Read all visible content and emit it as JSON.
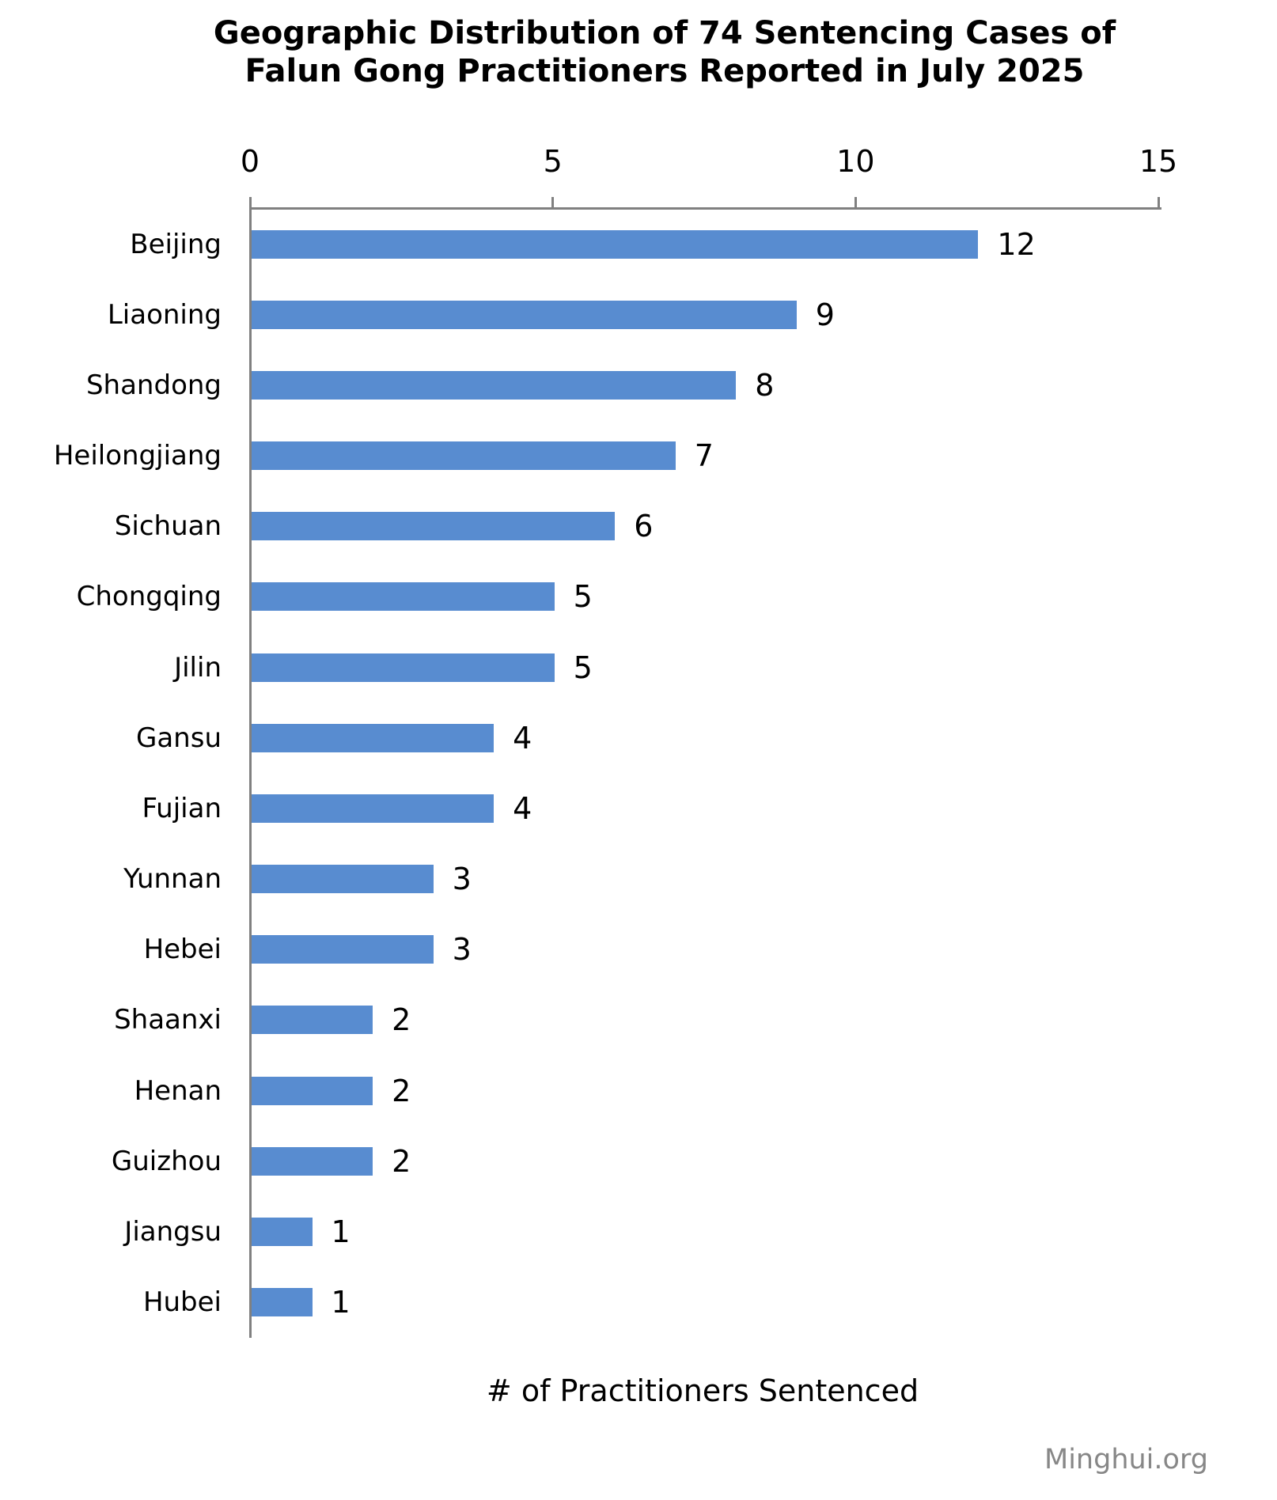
{
  "title": {
    "line1": "Geographic Distribution of 74 Sentencing Cases of",
    "line2": "Falun Gong Practitioners Reported in July 2025"
  },
  "watermark": "Minghui.org",
  "chart_data": {
    "type": "bar",
    "orientation": "horizontal",
    "title": "Geographic Distribution of 74 Sentencing Cases of Falun Gong Practitioners Reported in July 2025",
    "categories": [
      "Beijing",
      "Liaoning",
      "Shandong",
      "Heilongjiang",
      "Sichuan",
      "Chongqing",
      "Jilin",
      "Gansu",
      "Fujian",
      "Yunnan",
      "Hebei",
      "Shaanxi",
      "Henan",
      "Guizhou",
      "Jiangsu",
      "Hubei"
    ],
    "values": [
      12,
      9,
      8,
      7,
      6,
      5,
      5,
      4,
      4,
      3,
      3,
      2,
      2,
      2,
      1,
      1
    ],
    "total_cases": 74,
    "xlabel": "# of Practitioners Sentenced",
    "x_ticks": [
      0,
      5,
      10,
      15
    ],
    "xlim": [
      0,
      15
    ],
    "value_labels": true,
    "grid": false,
    "legend": false,
    "bar_color": "#588CD0",
    "axis_color": "#808080",
    "text_color": "#000000",
    "watermark_color": "#878787"
  }
}
